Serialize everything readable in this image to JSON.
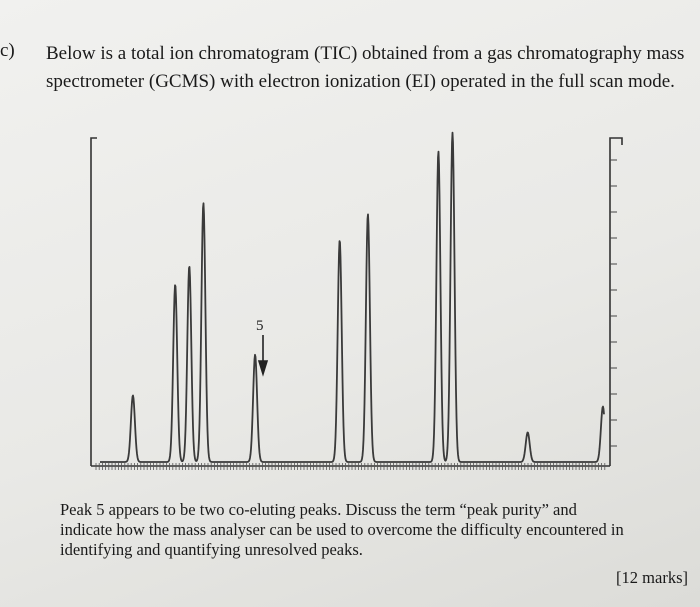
{
  "question": {
    "number": "c)",
    "intro_lines": [
      "Below is a total ion chromatogram (TIC) obtained from a gas chromatography mass",
      "spectrometer (GCMS) with electron ionization (EI) operated in the full scan mode."
    ],
    "prompt_lines": [
      "Peak 5 appears to be two co-eluting peaks.  Discuss the term “peak purity” and",
      "indicate how the mass analyser can be used to overcome the difficulty encountered in",
      "identifying and quantifying unresolved peaks."
    ],
    "marks": "[12 marks]"
  },
  "chart_data": {
    "type": "line",
    "title": "",
    "xlabel": "",
    "ylabel": "",
    "annotation": {
      "label": "5",
      "points_to_peak": 5
    },
    "peaks": [
      {
        "id": 1,
        "retention": 0.07,
        "height": 0.18
      },
      {
        "id": 2,
        "retention": 0.16,
        "height": 0.48
      },
      {
        "id": 3,
        "retention": 0.19,
        "height": 0.53
      },
      {
        "id": 4,
        "retention": 0.22,
        "height": 0.7
      },
      {
        "id": 5,
        "retention": 0.33,
        "height": 0.29
      },
      {
        "id": 6,
        "retention": 0.51,
        "height": 0.6
      },
      {
        "id": 7,
        "retention": 0.57,
        "height": 0.67
      },
      {
        "id": 8,
        "retention": 0.72,
        "height": 0.84
      },
      {
        "id": 9,
        "retention": 0.75,
        "height": 0.89
      },
      {
        "id": 10,
        "retention": 0.91,
        "height": 0.08
      },
      {
        "id": 11,
        "retention": 1.07,
        "height": 0.15
      }
    ]
  }
}
